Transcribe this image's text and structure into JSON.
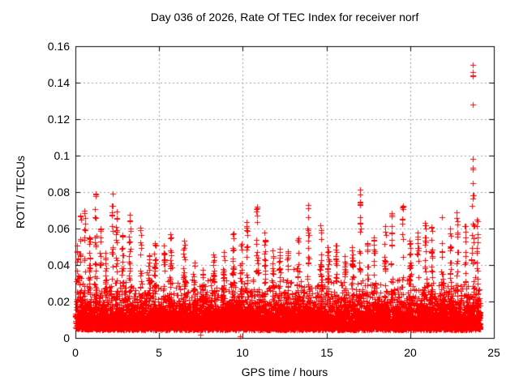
{
  "chart_data": {
    "type": "scatter",
    "title": "Day 036 of 2026, Rate Of TEC Index for receiver norf",
    "xlabel": "GPS time / hours",
    "ylabel": "ROTI / TECUs",
    "xlim": [
      0,
      25
    ],
    "ylim": [
      0,
      0.16
    ],
    "xticks": [
      0,
      5,
      10,
      15,
      20,
      25
    ],
    "xtick_labels": [
      "0",
      "5",
      "10",
      "15",
      "20",
      "25"
    ],
    "yticks": [
      0,
      0.02,
      0.04,
      0.06,
      0.08,
      0.1,
      0.12,
      0.14,
      0.16
    ],
    "ytick_labels": [
      "0",
      "0.02",
      "0.04",
      "0.06",
      "0.08",
      "0.1",
      "0.12",
      "0.14",
      "0.16"
    ],
    "grid": "dotted",
    "legend": "none",
    "marker": "plus",
    "marker_color": "#ff0000",
    "grid_color": "#9e9e9e",
    "axis_color": "#000000",
    "background": "#ffffff",
    "time_span_hours": [
      0,
      24.2
    ],
    "baseline": {
      "floor": 0.0045,
      "exp_mean": 0.0062,
      "cap": 0.032,
      "dense_band": [
        0.005,
        0.022
      ]
    },
    "spike_format": "[hour_center, peak_value_TECU, width_hours]",
    "spikes": [
      [
        0.1,
        0.052,
        0.05
      ],
      [
        0.3,
        0.068,
        0.06
      ],
      [
        0.55,
        0.07,
        0.05
      ],
      [
        0.85,
        0.058,
        0.06
      ],
      [
        1.2,
        0.085,
        0.06
      ],
      [
        1.5,
        0.062,
        0.05
      ],
      [
        1.8,
        0.048,
        0.05
      ],
      [
        2.2,
        0.08,
        0.05
      ],
      [
        2.45,
        0.072,
        0.05
      ],
      [
        2.8,
        0.06,
        0.06
      ],
      [
        3.25,
        0.068,
        0.07
      ],
      [
        3.9,
        0.061,
        0.05
      ],
      [
        4.4,
        0.048,
        0.06
      ],
      [
        4.75,
        0.052,
        0.06
      ],
      [
        5.3,
        0.048,
        0.06
      ],
      [
        5.7,
        0.058,
        0.08
      ],
      [
        6.5,
        0.055,
        0.07
      ],
      [
        7.1,
        0.042,
        0.07
      ],
      [
        7.6,
        0.038,
        0.06
      ],
      [
        8.25,
        0.047,
        0.06
      ],
      [
        8.85,
        0.048,
        0.06
      ],
      [
        9.4,
        0.06,
        0.07
      ],
      [
        9.9,
        0.052,
        0.06
      ],
      [
        10.25,
        0.066,
        0.05
      ],
      [
        10.85,
        0.073,
        0.09
      ],
      [
        11.3,
        0.058,
        0.06
      ],
      [
        11.8,
        0.048,
        0.06
      ],
      [
        12.2,
        0.05,
        0.06
      ],
      [
        12.7,
        0.048,
        0.06
      ],
      [
        13.3,
        0.056,
        0.06
      ],
      [
        13.9,
        0.073,
        0.06
      ],
      [
        14.65,
        0.062,
        0.06
      ],
      [
        15.1,
        0.048,
        0.06
      ],
      [
        15.6,
        0.052,
        0.06
      ],
      [
        16.1,
        0.045,
        0.06
      ],
      [
        16.55,
        0.05,
        0.05
      ],
      [
        17.0,
        0.082,
        0.05
      ],
      [
        17.45,
        0.055,
        0.06
      ],
      [
        17.85,
        0.058,
        0.05
      ],
      [
        18.5,
        0.063,
        0.06
      ],
      [
        18.9,
        0.069,
        0.05
      ],
      [
        19.55,
        0.078,
        0.05
      ],
      [
        20.0,
        0.055,
        0.06
      ],
      [
        20.45,
        0.058,
        0.06
      ],
      [
        20.9,
        0.065,
        0.06
      ],
      [
        21.3,
        0.062,
        0.06
      ],
      [
        21.9,
        0.052,
        0.06
      ],
      [
        22.4,
        0.06,
        0.06
      ],
      [
        22.8,
        0.07,
        0.06
      ],
      [
        23.3,
        0.062,
        0.06
      ],
      [
        23.75,
        0.085,
        0.12
      ],
      [
        24.0,
        0.065,
        0.08
      ]
    ],
    "outliers": [
      [
        23.72,
        0.15
      ],
      [
        23.74,
        0.146
      ],
      [
        23.73,
        0.144
      ],
      [
        23.76,
        0.1435
      ],
      [
        23.74,
        0.128
      ],
      [
        23.73,
        0.098
      ],
      [
        23.74,
        0.0935
      ],
      [
        23.76,
        0.0925
      ],
      [
        7.46,
        0.002
      ],
      [
        9.85,
        0.001
      ]
    ],
    "generation": {
      "seed": 7,
      "samples_per_hour": 170
    }
  }
}
